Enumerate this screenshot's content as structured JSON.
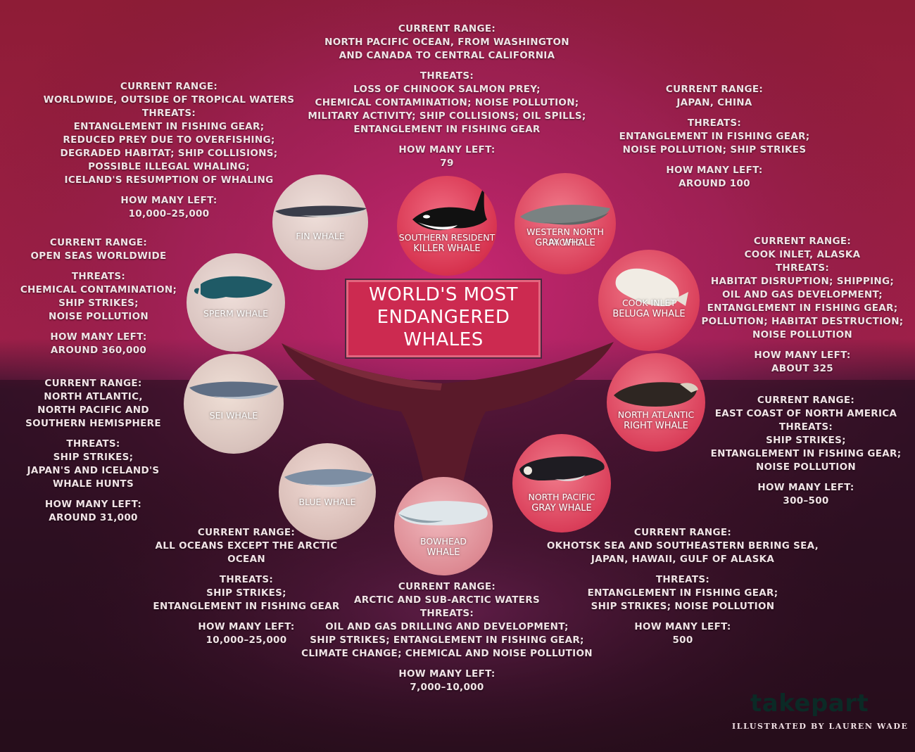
{
  "title": {
    "line1": "WORLD'S MOST",
    "line2": "ENDANGERED",
    "line3": "WHALES"
  },
  "labels": {
    "range": "CURRENT RANGE:",
    "threats": "THREATS:",
    "left": "HOW MANY LEFT:"
  },
  "whales": {
    "killer": {
      "name1": "SOUTHERN RESIDENT",
      "name2": "KILLER WHALE",
      "range": [
        "NORTH PACIFIC OCEAN, FROM WASHINGTON",
        "AND CANADA TO CENTRAL CALIFORNIA"
      ],
      "threats": [
        "LOSS OF CHINOOK SALMON PREY;",
        "CHEMICAL CONTAMINATION; NOISE POLLUTION;",
        "MILITARY ACTIVITY; SHIP COLLISIONS; OIL SPILLS;",
        "ENTANGLEMENT IN FISHING GEAR"
      ],
      "left": "79"
    },
    "fin": {
      "name1": "FIN WHALE",
      "range": [
        "WORLDWIDE, OUTSIDE OF TROPICAL WATERS"
      ],
      "threats": [
        "ENTANGLEMENT IN FISHING GEAR;",
        "REDUCED PREY DUE TO OVERFISHING;",
        "DEGRADED HABITAT; SHIP COLLISIONS;",
        "POSSIBLE ILLEGAL WHALING;",
        "ICELAND'S RESUMPTION OF WHALING"
      ],
      "left": "10,000–25,000"
    },
    "wngray": {
      "name1": "WESTERN NORTH PACIFIC",
      "name2": "GRAY WHALE",
      "range": [
        "JAPAN, CHINA"
      ],
      "threats": [
        "ENTANGLEMENT IN FISHING GEAR;",
        "NOISE POLLUTION; SHIP STRIKES"
      ],
      "left": "AROUND 100"
    },
    "sperm": {
      "name1": "SPERM WHALE",
      "range": [
        "OPEN SEAS WORLDWIDE"
      ],
      "threats": [
        "CHEMICAL CONTAMINATION;",
        "SHIP STRIKES;",
        "NOISE POLLUTION"
      ],
      "left": "AROUND 360,000"
    },
    "beluga": {
      "name1": "COOK INLET",
      "name2": "BELUGA WHALE",
      "range": [
        "COOK INLET, ALASKA"
      ],
      "threats": [
        "HABITAT DISRUPTION; SHIPPING;",
        "OIL AND GAS DEVELOPMENT;",
        "ENTANGLEMENT IN FISHING GEAR;",
        "POLLUTION; HABITAT DESTRUCTION;",
        "NOISE POLLUTION"
      ],
      "left": "ABOUT 325"
    },
    "sei": {
      "name1": "SEI WHALE",
      "range": [
        "NORTH ATLANTIC,",
        "NORTH PACIFIC AND",
        "SOUTHERN HEMISPHERE"
      ],
      "threats": [
        "SHIP STRIKES;",
        "JAPAN'S AND ICELAND'S",
        "WHALE HUNTS"
      ],
      "left": "AROUND 31,000"
    },
    "natlright": {
      "name1": "NORTH ATLANTIC",
      "name2": "RIGHT WHALE",
      "range": [
        "EAST COAST OF NORTH AMERICA"
      ],
      "threats": [
        "SHIP STRIKES;",
        "ENTANGLEMENT IN FISHING GEAR;",
        "NOISE POLLUTION"
      ],
      "left": "300–500"
    },
    "blue": {
      "name1": "BLUE WHALE",
      "range": [
        "ALL OCEANS EXCEPT THE ARCTIC OCEAN"
      ],
      "threats": [
        "SHIP STRIKES;",
        "ENTANGLEMENT IN FISHING GEAR"
      ],
      "left": "10,000–25,000"
    },
    "npgray": {
      "name1": "NORTH PACIFIC",
      "name2": "GRAY WHALE",
      "range": [
        "OKHOTSK SEA AND SOUTHEASTERN BERING SEA,",
        "JAPAN, HAWAII, GULF OF ALASKA"
      ],
      "threats": [
        "ENTANGLEMENT IN FISHING GEAR;",
        "SHIP STRIKES; NOISE POLLUTION"
      ],
      "left": "500"
    },
    "bowhead": {
      "name1": "BOWHEAD",
      "name2": "WHALE",
      "range": [
        "ARCTIC AND SUB-ARCTIC WATERS"
      ],
      "threats": [
        "OIL AND GAS DRILLING AND DEVELOPMENT;",
        "SHIP STRIKES; ENTANGLEMENT IN FISHING GEAR;",
        "CLIMATE CHANGE; CHEMICAL AND NOISE POLLUTION"
      ],
      "left": "7,000–10,000"
    }
  },
  "footer": {
    "logo": "takepart",
    "credit": "ILLUSTRATED BY LAUREN WADE"
  },
  "colors": {
    "accent": "#cc2a50",
    "text": "#f1e3e6",
    "logo": "#0b2a26"
  }
}
